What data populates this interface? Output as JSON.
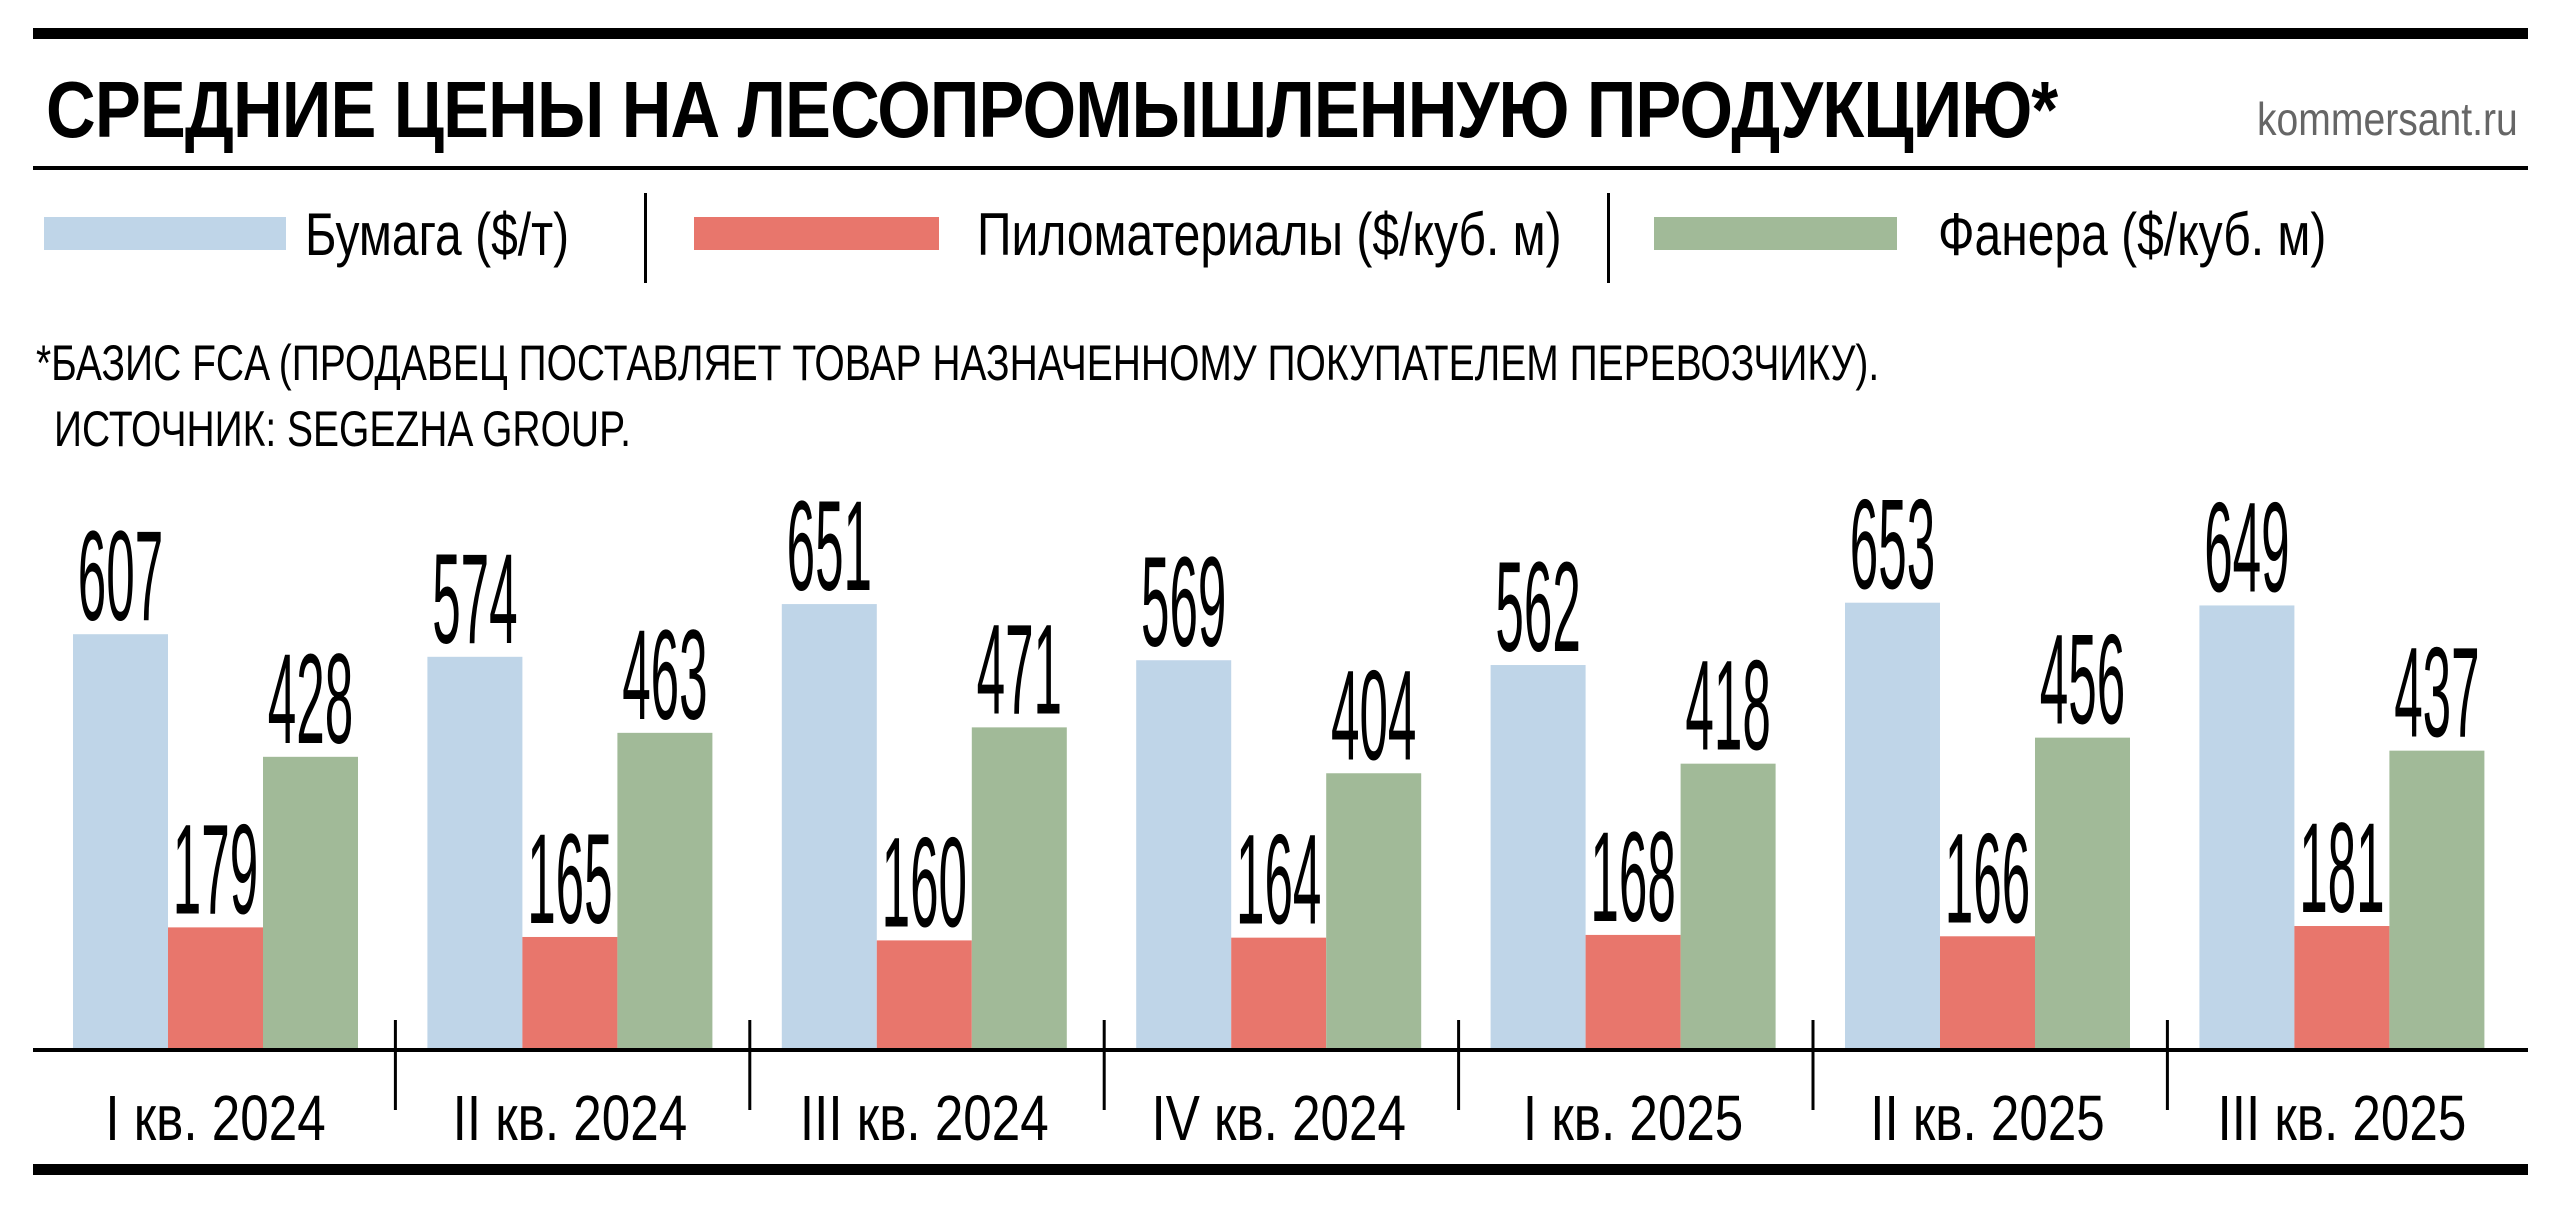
{
  "header": {
    "title": "СРЕДНИЕ ЦЕНЫ НА ЛЕСОПРОМЫШЛЕННУЮ ПРОДУКЦИЮ*",
    "site": "kommersant.ru"
  },
  "footnote": {
    "line1": "*БАЗИС FCA (ПРОДАВЕЦ ПОСТАВЛЯЕТ ТОВАР НАЗНАЧЕННОМУ ПОКУПАТЕЛЕМ ПЕРЕВОЗЧИКУ).",
    "line2": "ИСТОЧНИК: SEGEZHA GROUP."
  },
  "chart_data": {
    "type": "bar",
    "title": "СРЕДНИЕ ЦЕНЫ НА ЛЕСОПРОМЫШЛЕННУЮ ПРОДУКЦИЮ*",
    "categories": [
      "I кв. 2024",
      "II кв. 2024",
      "III кв. 2024",
      "IV кв. 2024",
      "I кв. 2025",
      "II кв. 2025",
      "III кв. 2025"
    ],
    "series": [
      {
        "name": "Бумага ($/т)",
        "color": "#bfd5e8",
        "values": [
          607,
          574,
          651,
          569,
          562,
          653,
          649
        ]
      },
      {
        "name": "Пиломатериалы ($/куб. м)",
        "color": "#e8766c",
        "values": [
          179,
          165,
          160,
          164,
          168,
          166,
          181
        ]
      },
      {
        "name": "Фанера ($/куб. м)",
        "color": "#a1ba98",
        "values": [
          428,
          463,
          471,
          404,
          418,
          456,
          437
        ]
      }
    ],
    "ylim": [
      0,
      700
    ],
    "grid": false,
    "legend": "top",
    "data_labels": true
  }
}
